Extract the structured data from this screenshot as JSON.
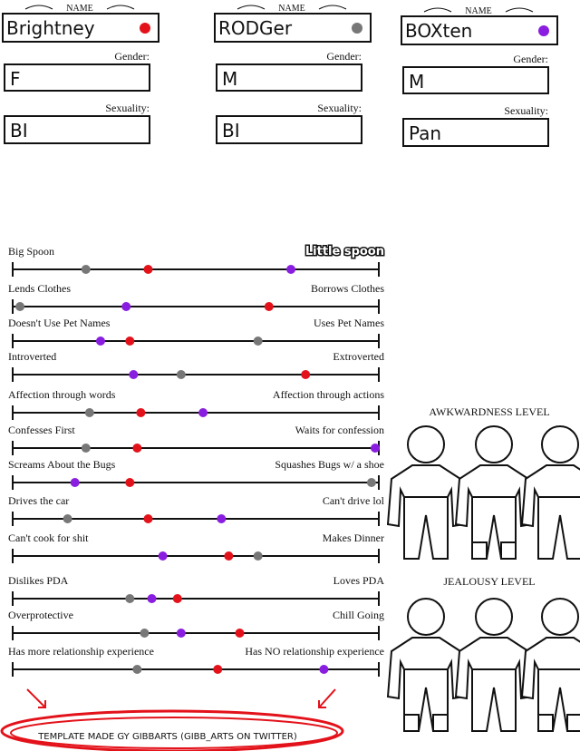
{
  "labels": {
    "name": "NAME",
    "gender": "Gender:",
    "sexuality": "Sexuality:"
  },
  "characters": [
    {
      "name": "Brightney",
      "color": "#e3121a",
      "gender": "F",
      "sexuality": "BI"
    },
    {
      "name": "RODGer",
      "color": "#777777",
      "gender": "M",
      "sexuality": "BI"
    },
    {
      "name": "BOXten",
      "color": "#8a1ee0",
      "gender": "M",
      "sexuality": "Pan"
    }
  ],
  "sliders": [
    {
      "left": "Big Spoon",
      "right": "Little spoon",
      "positions": [
        37,
        20,
        76
      ]
    },
    {
      "left": "Lends Clothes",
      "right": "Borrows Clothes",
      "positions": [
        70,
        2,
        31
      ]
    },
    {
      "left": "Doesn't Use Pet Names",
      "right": "Uses Pet Names",
      "positions": [
        32,
        67,
        24
      ]
    },
    {
      "left": "Introverted",
      "right": "Extroverted",
      "positions": [
        80,
        46,
        33
      ]
    },
    {
      "left": "Affection through words",
      "right": "Affection through actions",
      "positions": [
        35,
        21,
        52
      ]
    },
    {
      "left": "Confesses First",
      "right": "Waits for confession",
      "positions": [
        34,
        20,
        99
      ]
    },
    {
      "left": "Screams About the Bugs",
      "right": "Squashes Bugs w/ a shoe",
      "positions": [
        32,
        98,
        17
      ]
    },
    {
      "left": "Drives the car",
      "right": "Can't drive lol",
      "positions": [
        37,
        15,
        57
      ]
    },
    {
      "left": "Can't cook for shit",
      "right": "Makes Dinner",
      "positions": [
        59,
        67,
        41
      ]
    },
    {
      "left": "Dislikes PDA",
      "right": "Loves PDA",
      "positions": [
        45,
        32,
        38
      ]
    },
    {
      "left": "Overprotective",
      "right": "Chill Going",
      "positions": [
        62,
        36,
        46
      ]
    },
    {
      "left": "Has more relationship experience",
      "right": "Has NO relationship experience",
      "positions": [
        56,
        34,
        85
      ]
    }
  ],
  "levels": {
    "awkwardness": "AWKWARDNESS LEVEL",
    "jealousy": "JEALOUSY LEVEL"
  },
  "footer": "TEMPLATE MADE GY GIBBARTS (GIBB_ARTS ON TWITTER)"
}
